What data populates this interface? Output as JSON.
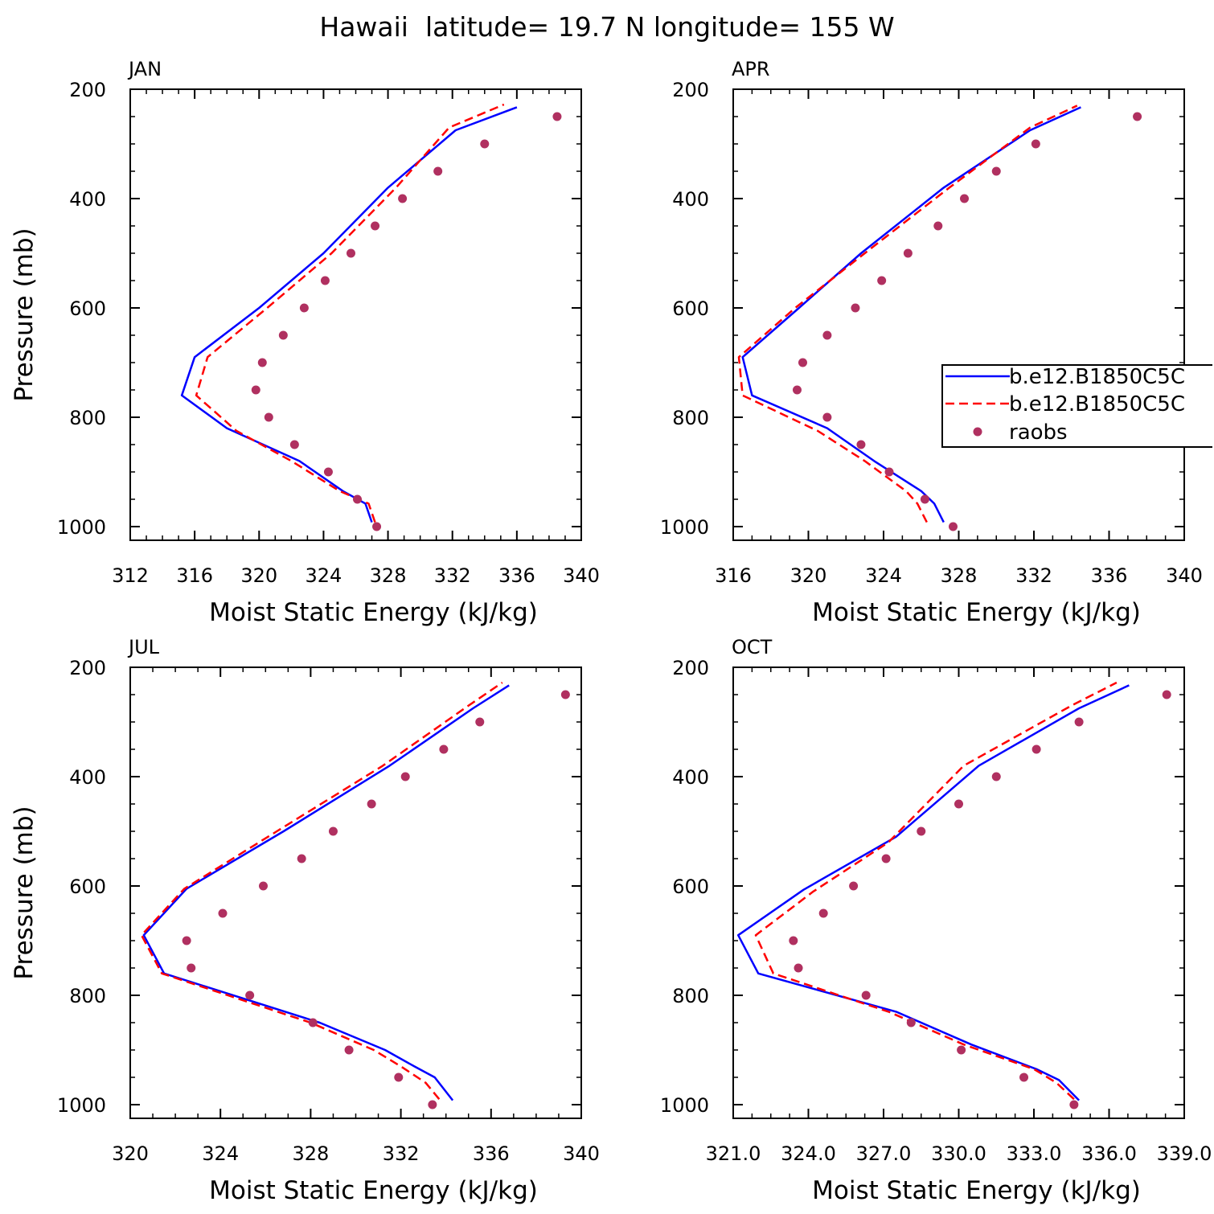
{
  "figure_title": "Hawaii  latitude= 19.7 N longitude= 155 W",
  "legend": [
    {
      "label": "b.e12.B1850C5C",
      "style": "solid",
      "color": "#0000ff"
    },
    {
      "label": "b.e12.B1850C5C",
      "style": "dashed",
      "color": "#ff0000"
    },
    {
      "label": "raobs",
      "style": "dots",
      "color": "#b03060"
    }
  ],
  "chart_data": [
    {
      "type": "line",
      "panel_label": "JAN",
      "xlabel": "Moist Static Energy (kJ/kg)",
      "ylabel": "Pressure (mb)",
      "xlim": [
        312,
        340
      ],
      "ylim": [
        1025,
        200
      ],
      "xticks": [
        312,
        316,
        320,
        324,
        328,
        332,
        336,
        340
      ],
      "xtick_labels": [
        "312",
        "316",
        "320",
        "324",
        "328",
        "332",
        "336",
        "340"
      ],
      "yticks": [
        200,
        400,
        600,
        800,
        1000
      ],
      "ytick_labels": [
        "200",
        "400",
        "600",
        "800",
        "1000"
      ],
      "series": [
        {
          "name": "b.e12.B1850C5C",
          "style": "solid",
          "color": "#0000ff",
          "pressure": [
            992,
            958,
            935,
            880,
            820,
            760,
            690,
            600,
            500,
            380,
            275,
            233
          ],
          "values": [
            327.0,
            326.6,
            325.2,
            322.5,
            318.0,
            315.2,
            316.0,
            320.0,
            324.0,
            328.0,
            332.2,
            336.0
          ]
        },
        {
          "name": "b.e12.B1850C5C",
          "style": "dashed",
          "color": "#ff0000",
          "pressure": [
            992,
            958,
            935,
            880,
            825,
            760,
            690,
            600,
            500,
            380,
            270,
            228
          ],
          "values": [
            327.2,
            326.8,
            325.0,
            322.0,
            318.6,
            316.1,
            316.8,
            320.5,
            324.5,
            328.5,
            331.8,
            335.2
          ]
        },
        {
          "name": "raobs",
          "style": "dots",
          "color": "#b03060",
          "pressure": [
            1000,
            950,
            900,
            850,
            800,
            750,
            700,
            650,
            600,
            550,
            500,
            450,
            400,
            350,
            300,
            250
          ],
          "values": [
            327.3,
            326.1,
            324.3,
            322.2,
            320.6,
            319.8,
            320.2,
            321.5,
            322.8,
            324.1,
            325.7,
            327.2,
            328.9,
            331.1,
            334.0,
            338.5
          ]
        }
      ]
    },
    {
      "type": "line",
      "panel_label": "APR",
      "xlabel": "Moist Static Energy (kJ/kg)",
      "ylabel": "",
      "xlim": [
        316,
        340
      ],
      "ylim": [
        1025,
        200
      ],
      "xticks": [
        316,
        320,
        324,
        328,
        332,
        336,
        340
      ],
      "xtick_labels": [
        "316",
        "320",
        "324",
        "328",
        "332",
        "336",
        "340"
      ],
      "yticks": [
        200,
        400,
        600,
        800,
        1000
      ],
      "ytick_labels": [
        "200",
        "400",
        "600",
        "800",
        "1000"
      ],
      "series": [
        {
          "name": "b.e12.B1850C5C",
          "style": "solid",
          "color": "#0000ff",
          "pressure": [
            992,
            958,
            935,
            880,
            820,
            760,
            690,
            600,
            500,
            380,
            275,
            233
          ],
          "values": [
            327.2,
            326.7,
            326.0,
            323.5,
            321.0,
            317.0,
            316.5,
            319.5,
            322.8,
            327.2,
            331.8,
            334.5
          ]
        },
        {
          "name": "b.e12.B1850C5C",
          "style": "dashed",
          "color": "#ff0000",
          "pressure": [
            992,
            958,
            935,
            880,
            825,
            760,
            690,
            600,
            500,
            380,
            270,
            230
          ],
          "values": [
            326.3,
            325.8,
            325.2,
            323.0,
            320.5,
            316.5,
            316.3,
            319.3,
            323.0,
            327.5,
            331.8,
            334.3
          ]
        },
        {
          "name": "raobs",
          "style": "dots",
          "color": "#b03060",
          "pressure": [
            1000,
            950,
            900,
            850,
            800,
            750,
            700,
            650,
            600,
            550,
            500,
            450,
            400,
            350,
            300,
            250
          ],
          "values": [
            327.7,
            326.2,
            324.3,
            322.8,
            321.0,
            319.4,
            319.7,
            321.0,
            322.5,
            323.9,
            325.3,
            326.9,
            328.3,
            330.0,
            332.1,
            337.5
          ]
        }
      ]
    },
    {
      "type": "line",
      "panel_label": "JUL",
      "xlabel": "Moist Static Energy (kJ/kg)",
      "ylabel": "Pressure (mb)",
      "xlim": [
        320,
        340
      ],
      "ylim": [
        1025,
        200
      ],
      "xticks": [
        320,
        324,
        328,
        332,
        336,
        340
      ],
      "xtick_labels": [
        "320",
        "324",
        "328",
        "332",
        "336",
        "340"
      ],
      "yticks": [
        200,
        400,
        600,
        800,
        1000
      ],
      "ytick_labels": [
        "200",
        "400",
        "600",
        "800",
        "1000"
      ],
      "series": [
        {
          "name": "b.e12.B1850C5C",
          "style": "solid",
          "color": "#0000ff",
          "pressure": [
            992,
            950,
            930,
            900,
            850,
            760,
            690,
            605,
            500,
            380,
            275,
            233
          ],
          "values": [
            334.3,
            333.5,
            332.6,
            331.3,
            328.4,
            321.5,
            320.6,
            322.5,
            326.8,
            331.5,
            335.2,
            336.8
          ]
        },
        {
          "name": "b.e12.B1850C5C",
          "style": "dashed",
          "color": "#ff0000",
          "pressure": [
            990,
            960,
            930,
            900,
            850,
            760,
            690,
            605,
            500,
            380,
            270,
            228
          ],
          "values": [
            333.7,
            333.1,
            332.0,
            330.8,
            328.0,
            321.4,
            320.5,
            322.4,
            326.5,
            331.2,
            335.0,
            336.5
          ]
        },
        {
          "name": "raobs",
          "style": "dots",
          "color": "#b03060",
          "pressure": [
            1000,
            950,
            900,
            850,
            800,
            750,
            700,
            650,
            600,
            550,
            500,
            450,
            400,
            350,
            300,
            250
          ],
          "values": [
            333.4,
            331.9,
            329.7,
            328.1,
            325.3,
            322.7,
            322.5,
            324.1,
            325.9,
            327.6,
            329.0,
            330.7,
            332.2,
            333.9,
            335.5,
            339.3
          ]
        }
      ]
    },
    {
      "type": "line",
      "panel_label": "OCT",
      "xlabel": "Moist Static Energy (kJ/kg)",
      "ylabel": "",
      "xlim": [
        321,
        339
      ],
      "ylim": [
        1025,
        200
      ],
      "xticks": [
        321,
        324,
        327,
        330,
        333,
        336,
        339
      ],
      "xtick_labels": [
        "321.0",
        "324.0",
        "327.0",
        "330.0",
        "333.0",
        "336.0",
        "339.0"
      ],
      "yticks": [
        200,
        400,
        600,
        800,
        1000
      ],
      "ytick_labels": [
        "200",
        "400",
        "600",
        "800",
        "1000"
      ],
      "series": [
        {
          "name": "b.e12.B1850C5C",
          "style": "solid",
          "color": "#0000ff",
          "pressure": [
            992,
            955,
            935,
            890,
            830,
            760,
            690,
            607,
            510,
            380,
            275,
            233
          ],
          "values": [
            334.8,
            334.0,
            333.1,
            330.5,
            327.5,
            322.0,
            321.2,
            323.8,
            327.5,
            330.8,
            334.8,
            336.8
          ]
        },
        {
          "name": "b.e12.B1850C5C",
          "style": "dashed",
          "color": "#ff0000",
          "pressure": [
            990,
            960,
            935,
            890,
            830,
            760,
            690,
            610,
            520,
            380,
            270,
            228
          ],
          "values": [
            334.6,
            333.9,
            333.0,
            330.2,
            327.2,
            322.6,
            321.9,
            324.2,
            327.2,
            330.2,
            334.5,
            336.3
          ]
        },
        {
          "name": "raobs",
          "style": "dots",
          "color": "#b03060",
          "pressure": [
            1000,
            950,
            900,
            850,
            800,
            750,
            700,
            650,
            600,
            550,
            500,
            450,
            400,
            350,
            300,
            250
          ],
          "values": [
            334.6,
            332.6,
            330.1,
            328.1,
            326.3,
            323.6,
            323.4,
            324.6,
            325.8,
            327.1,
            328.5,
            330.0,
            331.5,
            333.1,
            334.8,
            338.3
          ]
        }
      ]
    }
  ]
}
